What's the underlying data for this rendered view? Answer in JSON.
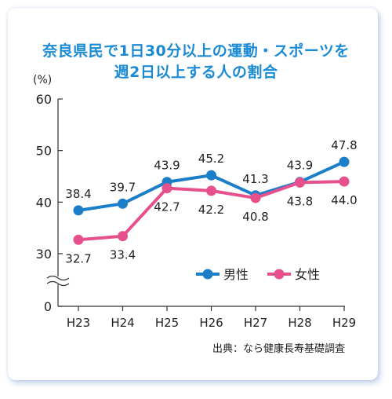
{
  "chart_data": {
    "type": "line",
    "title_lines": [
      "奈良県民で1日30分以上の運動・スポーツを",
      "週2日以上する人の割合"
    ],
    "unit_label": "(%)",
    "categories": [
      "H23",
      "H24",
      "H25",
      "H26",
      "H27",
      "H28",
      "H29"
    ],
    "y_ticks": [
      "60",
      "50",
      "40",
      "30",
      "0"
    ],
    "y_range": [
      30,
      60
    ],
    "axis_break": true,
    "grid": false,
    "legend_position": "bottom-right",
    "series": [
      {
        "name": "男性",
        "color": "#1b7ec8",
        "values": [
          38.4,
          39.7,
          43.9,
          45.2,
          41.3,
          43.9,
          47.8
        ],
        "labels": [
          "38.4",
          "39.7",
          "43.9",
          "45.2",
          "41.3",
          "43.9",
          "47.8"
        ]
      },
      {
        "name": "女性",
        "color": "#e6508c",
        "values": [
          32.7,
          33.4,
          42.7,
          42.2,
          40.8,
          43.8,
          44.0
        ],
        "labels": [
          "32.7",
          "33.4",
          "42.7",
          "42.2",
          "40.8",
          "43.8",
          "44.0"
        ]
      }
    ],
    "source": "出典：なら健康長寿基礎調査"
  }
}
